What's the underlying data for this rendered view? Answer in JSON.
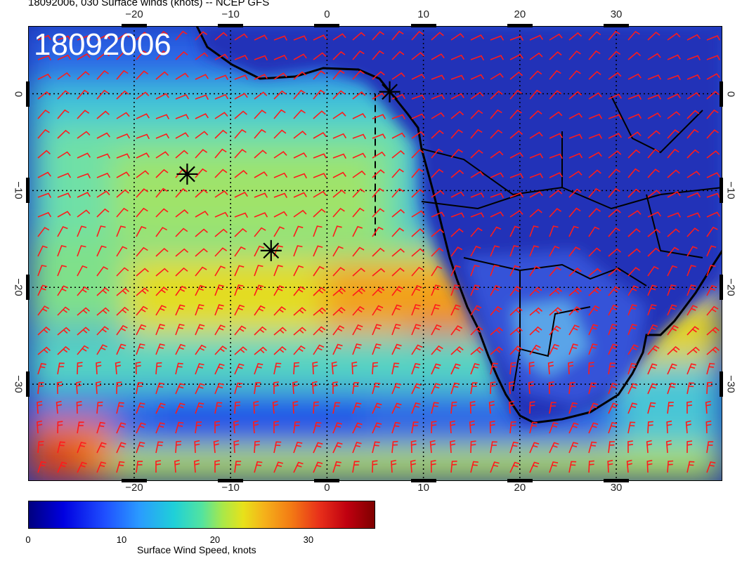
{
  "header": {
    "title": "18092006, 030 Surface winds (knots) -- NCEP GFS",
    "stamp": "18092006"
  },
  "map": {
    "extent_lon": [
      -31,
      41
    ],
    "extent_lat": [
      -40,
      7
    ],
    "x_ticks": [
      "−20",
      "−10",
      "0",
      "10",
      "20",
      "30"
    ],
    "x_tick_values": [
      -20,
      -10,
      0,
      10,
      20,
      30
    ],
    "y_ticks": [
      "0",
      "−10",
      "−20",
      "−30"
    ],
    "y_tick_values": [
      0,
      -10,
      -20,
      -30
    ],
    "grid": "dotted black lines every 10 degrees",
    "barb_color": "#ff1a1a",
    "coastline_color": "#000000",
    "markers": [
      {
        "name": "star-1",
        "lon": 6.5,
        "lat": 0.2
      },
      {
        "name": "star-2",
        "lon": -14.5,
        "lat": -8.3
      },
      {
        "name": "star-3",
        "lon": -5.8,
        "lat": -16.2
      }
    ],
    "dashed_line": {
      "lon": 5.0,
      "lat_from": 0,
      "lat_to": -15
    }
  },
  "colorbar": {
    "title": "Surface Wind Speed, knots",
    "labels": [
      "0",
      "10",
      "20",
      "30"
    ],
    "label_values": [
      0,
      10,
      20,
      30
    ],
    "max": 37,
    "colormap": "jet",
    "colors": [
      "#00007f",
      "#0000e0",
      "#1f4fff",
      "#2a9bff",
      "#1fd0d8",
      "#52e3a0",
      "#a8e84a",
      "#e7e21a",
      "#f5b21a",
      "#f37a14",
      "#e8301a",
      "#c00010",
      "#7f0000"
    ]
  }
}
